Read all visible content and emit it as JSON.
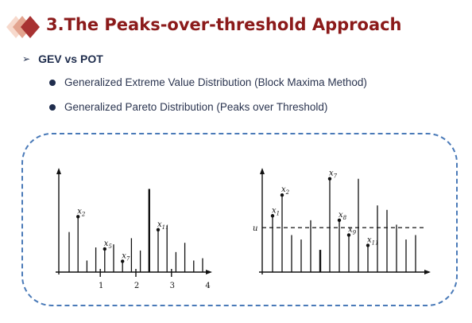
{
  "slide": {
    "title": "3.The Peaks-over-threshold Approach",
    "subtitle": "GEV vs POT",
    "bullets": [
      "Generalized Extreme Value Distribution (Block Maxima Method)",
      "Generalized Pareto Distribution (Peaks over Threshold)"
    ],
    "colors": {
      "title": "#8b1a1a",
      "frame": "#4a7ab8",
      "logo_light": "#f2c9b8",
      "logo_dark": "#a83232"
    }
  },
  "chart_data": [
    {
      "type": "bar",
      "x": [
        1,
        2,
        3,
        4,
        5,
        6,
        7,
        8,
        9,
        10,
        11,
        12,
        13,
        14,
        15,
        16
      ],
      "values": [
        52,
        72,
        15,
        32,
        30,
        36,
        14,
        44,
        28,
        108,
        55,
        60,
        26,
        38,
        15,
        18
      ],
      "ylim": [
        0,
        125
      ],
      "block_boundaries": [
        4.5,
        8.5,
        12.5
      ],
      "block_labels": [
        "1",
        "2",
        "3",
        "4"
      ],
      "labeled_points": [
        {
          "index": 1,
          "label": "x2"
        },
        {
          "index": 4,
          "label": "x5"
        },
        {
          "index": 6,
          "label": "x7"
        },
        {
          "index": 10,
          "label": "x11"
        }
      ]
    },
    {
      "type": "bar",
      "x": [
        1,
        2,
        3,
        4,
        5,
        6,
        7,
        8,
        9,
        10,
        11,
        12,
        13,
        14,
        15,
        16
      ],
      "values": [
        38,
        52,
        25,
        22,
        35,
        15,
        63,
        35,
        25,
        63,
        18,
        45,
        42,
        32,
        22,
        25
      ],
      "ylim": [
        0,
        65
      ],
      "threshold": 30,
      "threshold_label": "u",
      "labeled_points": [
        {
          "index": 0,
          "label": "x1"
        },
        {
          "index": 1,
          "label": "x2"
        },
        {
          "index": 6,
          "label": "x7"
        },
        {
          "index": 7,
          "label": "x8"
        },
        {
          "index": 8,
          "label": "x9"
        },
        {
          "index": 10,
          "label": "x11"
        }
      ]
    }
  ]
}
